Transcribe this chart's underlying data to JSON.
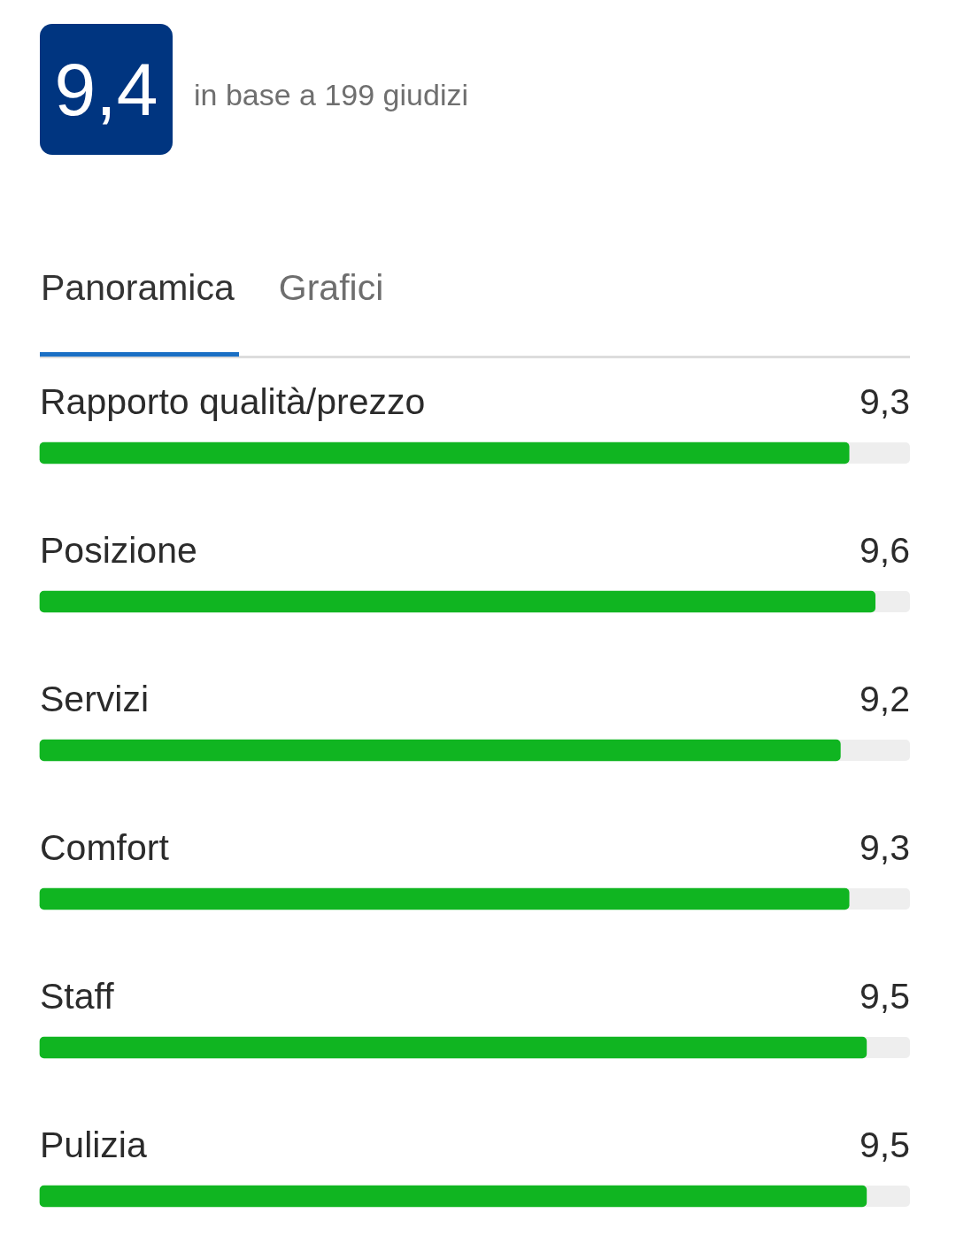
{
  "chart_data": {
    "type": "bar",
    "orientation": "horizontal",
    "title": "9,4",
    "subtitle": "in base a 199 giudizi",
    "annotations": [
      "Panoramica",
      "Grafici"
    ],
    "categories": [
      "Rapporto qualità/prezzo",
      "Posizione",
      "Servizi",
      "Comfort",
      "Staff",
      "Pulizia"
    ],
    "values": [
      9.3,
      9.6,
      9.2,
      9.3,
      9.5,
      9.5
    ],
    "value_labels": [
      "9,3",
      "9,6",
      "9,2",
      "9,3",
      "9,5",
      "9,5"
    ],
    "color": "#10b521",
    "xlim": [
      0,
      10
    ],
    "tick_labels": "y"
  }
}
